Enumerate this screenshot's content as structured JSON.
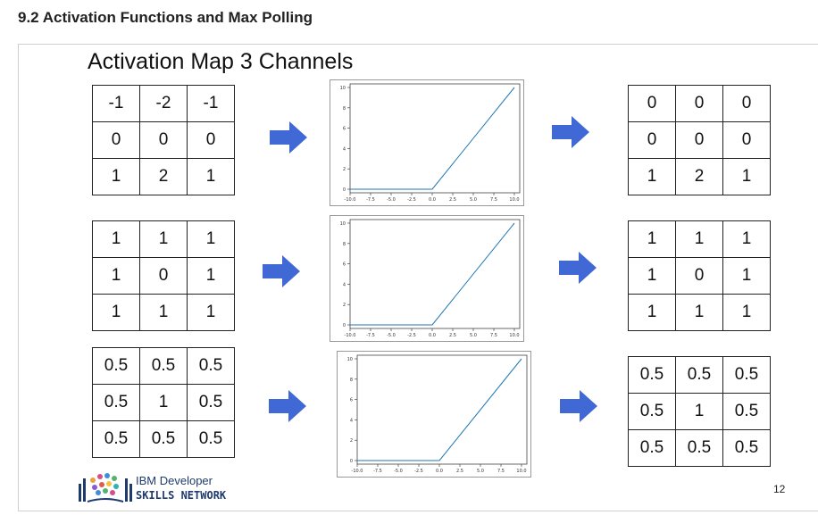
{
  "header": {
    "title": "9.2 Activation Functions and Max Polling"
  },
  "slide": {
    "title": "Activation Map 3 Channels",
    "page_number": "12",
    "logo": {
      "line1": "IBM Developer",
      "line2": "SKILLS NETWORK"
    }
  },
  "inputs": [
    [
      [
        "-1",
        "-2",
        "-1"
      ],
      [
        "0",
        "0",
        "0"
      ],
      [
        "1",
        "2",
        "1"
      ]
    ],
    [
      [
        "1",
        "1",
        "1"
      ],
      [
        "1",
        "0",
        "1"
      ],
      [
        "1",
        "1",
        "1"
      ]
    ],
    [
      [
        "0.5",
        "0.5",
        "0.5"
      ],
      [
        "0.5",
        "1",
        "0.5"
      ],
      [
        "0.5",
        "0.5",
        "0.5"
      ]
    ]
  ],
  "outputs": [
    [
      [
        "0",
        "0",
        "0"
      ],
      [
        "0",
        "0",
        "0"
      ],
      [
        "1",
        "2",
        "1"
      ]
    ],
    [
      [
        "1",
        "1",
        "1"
      ],
      [
        "1",
        "0",
        "1"
      ],
      [
        "1",
        "1",
        "1"
      ]
    ],
    [
      [
        "0.5",
        "0.5",
        "0.5"
      ],
      [
        "0.5",
        "1",
        "0.5"
      ],
      [
        "0.5",
        "0.5",
        "0.5"
      ]
    ]
  ],
  "chart_data": [
    {
      "type": "line",
      "x": [
        -10,
        0,
        10
      ],
      "y": [
        0,
        0,
        10
      ],
      "xlim": [
        -10,
        10
      ],
      "ylim": [
        0,
        10
      ],
      "xticks": [
        "-10.0",
        "-7.5",
        "-5.0",
        "-2.5",
        "0.0",
        "2.5",
        "5.0",
        "7.5",
        "10.0"
      ],
      "yticks": [
        "0",
        "2",
        "4",
        "6",
        "8",
        "10"
      ]
    },
    {
      "type": "line",
      "x": [
        -10,
        0,
        10
      ],
      "y": [
        0,
        0,
        10
      ],
      "xlim": [
        -10,
        10
      ],
      "ylim": [
        0,
        10
      ],
      "xticks": [
        "-10.0",
        "-7.5",
        "-5.0",
        "-2.5",
        "0.0",
        "2.5",
        "5.0",
        "7.5",
        "10.0"
      ],
      "yticks": [
        "0",
        "2",
        "4",
        "6",
        "8",
        "10"
      ]
    },
    {
      "type": "line",
      "x": [
        -10,
        0,
        10
      ],
      "y": [
        0,
        0,
        10
      ],
      "xlim": [
        -10,
        10
      ],
      "ylim": [
        0,
        10
      ],
      "xticks": [
        "-10.0",
        "-7.5",
        "-5.0",
        "-2.5",
        "0.0",
        "2.5",
        "5.0",
        "7.5",
        "10.0"
      ],
      "yticks": [
        "0",
        "2",
        "4",
        "6",
        "8",
        "10"
      ]
    }
  ],
  "colors": {
    "arrow": "#4169d6",
    "line": "#1f77b4"
  },
  "icons": {
    "arrow": "right-arrow-icon",
    "logo": "ibm-developer-logo"
  }
}
